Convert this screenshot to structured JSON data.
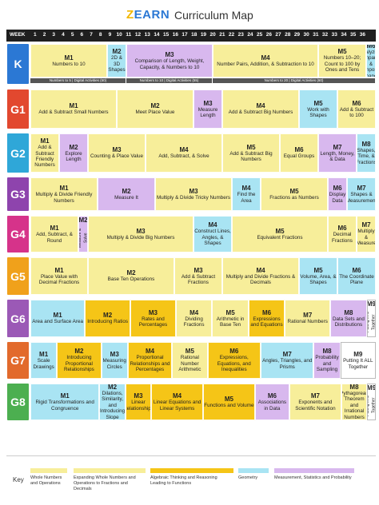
{
  "header": {
    "logo_z": "Z",
    "logo_rest": "EARN",
    "title": "Curriculum Map"
  },
  "weekbar": {
    "label": "WEEK",
    "weeks": [
      "1",
      "2",
      "3",
      "4",
      "5",
      "6",
      "7",
      "8",
      "9",
      "10",
      "11",
      "12",
      "13",
      "14",
      "15",
      "16",
      "17",
      "18",
      "19",
      "20",
      "21",
      "22",
      "23",
      "24",
      "25",
      "26",
      "27",
      "28",
      "29",
      "30",
      "31",
      "32",
      "33",
      "34",
      "35",
      "36"
    ]
  },
  "grades": [
    "K",
    "G1",
    "G2",
    "G3",
    "G4",
    "G5",
    "G6",
    "G7",
    "G8"
  ],
  "grade_colors": [
    "#2b78d4",
    "#e2482f",
    "#2fa7d8",
    "#8e44ad",
    "#d6338a",
    "#f0a11b",
    "#9b59b6",
    "#e26a2c",
    "#4caf50"
  ],
  "rows": [
    [
      {
        "m": "M1",
        "t": "Numbers to 10"
      },
      {
        "m": "M2",
        "t": "2D & 3D Shapes"
      },
      {
        "m": "M3",
        "t": "Comparison of Length, Weight, Capacity, & Numbers to 10"
      },
      {
        "m": "M4",
        "t": "Number Pairs, Addition, & Subtraction to 10"
      },
      {
        "m": "M5",
        "t": "Numbers 10–20; Count to 100 by Ones and Tens"
      },
      {
        "m": "M6",
        "t": "Analyzing, Comparing, & Composing Shapes"
      }
    ],
    [
      {
        "m": "M1",
        "t": "Add & Subtract Small Numbers"
      },
      {
        "m": "M2",
        "t": "Meet Place Value"
      },
      {
        "m": "M3",
        "t": "Measure Length"
      },
      {
        "m": "M4",
        "t": "Add & Subtract Big Numbers"
      },
      {
        "m": "M5",
        "t": "Work with Shapes"
      },
      {
        "m": "M6",
        "t": "Add & Subtract to 100"
      }
    ],
    [
      {
        "m": "M1",
        "t": "Add & Subtract Friendly Numbers"
      },
      {
        "m": "M2",
        "t": "Explore Length"
      },
      {
        "m": "M3",
        "t": "Counting & Place Value"
      },
      {
        "m": "M4",
        "t": "Add, Subtract, & Solve"
      },
      {
        "m": "M5",
        "t": "Add & Subtract Big Numbers"
      },
      {
        "m": "M6",
        "t": "Equal Groups"
      },
      {
        "m": "M7",
        "t": "Length, Money, & Data"
      },
      {
        "m": "M8",
        "t": "Shapes, Time, & Fractions"
      }
    ],
    [
      {
        "m": "M1",
        "t": "Multiply & Divide Friendly Numbers"
      },
      {
        "m": "M2",
        "t": "Measure It"
      },
      {
        "m": "M3",
        "t": "Multiply & Divide Tricky Numbers"
      },
      {
        "m": "M4",
        "t": "Find the Area"
      },
      {
        "m": "M5",
        "t": "Fractions as Numbers"
      },
      {
        "m": "M6",
        "t": "Display Data"
      },
      {
        "m": "M7",
        "t": "Shapes & Measurement"
      }
    ],
    [
      {
        "m": "M1",
        "t": "Add, Subtract, & Round"
      },
      {
        "m": "M2",
        "t": "Measure & Solve"
      },
      {
        "m": "M3",
        "t": "Multiply & Divide Big Numbers"
      },
      {
        "m": "M4",
        "t": "Construct Lines, Angles, & Shapes"
      },
      {
        "m": "M5",
        "t": "Equivalent Fractions"
      },
      {
        "m": "M6",
        "t": "Decimal Fractions"
      },
      {
        "m": "M7",
        "t": "Multiply & Measure"
      }
    ],
    [
      {
        "m": "M1",
        "t": "Place Value with Decimal Fractions"
      },
      {
        "m": "M2",
        "t": "Base Ten Operations"
      },
      {
        "m": "M3",
        "t": "Add & Subtract Fractions"
      },
      {
        "m": "M4",
        "t": "Multiply and Divide Fractions & Decimals"
      },
      {
        "m": "M5",
        "t": "Volume, Area, & Shapes"
      },
      {
        "m": "M6",
        "t": "The Coordinate Plane"
      }
    ],
    [
      {
        "m": "M1",
        "t": "Area and Surface Area"
      },
      {
        "m": "M2",
        "t": "Introducing Ratios"
      },
      {
        "m": "M3",
        "t": "Rates and Percentages"
      },
      {
        "m": "M4",
        "t": "Dividing Fractions"
      },
      {
        "m": "M5",
        "t": "Arithmetic in Base Ten"
      },
      {
        "m": "M6",
        "t": "Expressions and Equations"
      },
      {
        "m": "M7",
        "t": "Rational Numbers"
      },
      {
        "m": "M8",
        "t": "Data Sets and Distributions"
      },
      {
        "m": "M9",
        "t": "Putting It All Together"
      }
    ],
    [
      {
        "m": "M1",
        "t": "Scale Drawings"
      },
      {
        "m": "M2",
        "t": "Introducing Proportional Relationships"
      },
      {
        "m": "M3",
        "t": "Measuring Circles"
      },
      {
        "m": "M4",
        "t": "Proportional Relationships and Percentages"
      },
      {
        "m": "M5",
        "t": "Rational Number Arithmetic"
      },
      {
        "m": "M6",
        "t": "Expressions, Equations, and Inequalities"
      },
      {
        "m": "M7",
        "t": "Angles, Triangles, and Prisms"
      },
      {
        "m": "M8",
        "t": "Probability and Sampling"
      },
      {
        "m": "M9",
        "t": "Putting It ALL Together"
      }
    ],
    [
      {
        "m": "M1",
        "t": "Rigid Transformations and Congruence"
      },
      {
        "m": "M2",
        "t": "Dilations, Similarity, and Introducing Slope"
      },
      {
        "m": "M3",
        "t": "Linear Relationships"
      },
      {
        "m": "M4",
        "t": "Linear Equations and Linear Systems"
      },
      {
        "m": "M5",
        "t": "Functions and Volume"
      },
      {
        "m": "M6",
        "t": "Associations in Data"
      },
      {
        "m": "M7",
        "t": "Exponents and Scientific Notation"
      },
      {
        "m": "M8",
        "t": "Pythagorean Theorem and Irrational Numbers"
      },
      {
        "m": "M9",
        "t": "Putting It All Together"
      }
    ]
  ],
  "strips": [
    "Numbers to 5 | Digital Activities (50)",
    "Numbers to 10 | Digital Activities (55)",
    "Numbers to 20 | Digital Activities (60)"
  ],
  "key": {
    "label": "Key",
    "items": [
      {
        "text": "Whole Numbers and Operations",
        "color": "#f7ee9a"
      },
      {
        "text": "Expanding Whole Numbers and Operations to Fractions and Decimals",
        "color": "#f7ee9a"
      },
      {
        "text": "Algebraic Thinking and Reasoning Leading to Functions",
        "color": "#f5c517"
      },
      {
        "text": "Geometry",
        "color": "#a9e4f3"
      },
      {
        "text": "Measurement, Statistics and Probability",
        "color": "#d8b8ee"
      }
    ]
  }
}
